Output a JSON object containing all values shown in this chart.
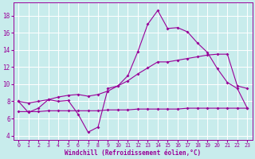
{
  "xlabel": "Windchill (Refroidissement éolien,°C)",
  "background_color": "#c8ecec",
  "grid_color": "#ffffff",
  "line_color": "#990099",
  "x_ticks": [
    0,
    1,
    2,
    3,
    4,
    5,
    6,
    7,
    8,
    9,
    10,
    11,
    12,
    13,
    14,
    15,
    16,
    17,
    18,
    19,
    20,
    21,
    22,
    23
  ],
  "y_ticks": [
    4,
    6,
    8,
    10,
    12,
    14,
    16,
    18
  ],
  "xlim": [
    -0.5,
    23.5
  ],
  "ylim": [
    3.5,
    19.5
  ],
  "series1_x": [
    0,
    1,
    2,
    3,
    4,
    5,
    6,
    7,
    8,
    9,
    10,
    11,
    12,
    13,
    14,
    15,
    16,
    17,
    18,
    19,
    20,
    21,
    22,
    23
  ],
  "series1_y": [
    8.0,
    6.7,
    7.2,
    8.2,
    8.0,
    8.1,
    6.5,
    4.4,
    5.0,
    9.5,
    9.8,
    11.0,
    13.8,
    17.0,
    18.6,
    16.5,
    16.6,
    16.1,
    14.8,
    13.7,
    11.8,
    10.2,
    9.5,
    7.2
  ],
  "series2_x": [
    0,
    1,
    2,
    3,
    4,
    5,
    6,
    7,
    8,
    9,
    10,
    11,
    12,
    13,
    14,
    15,
    16,
    17,
    18,
    19,
    20,
    21,
    22,
    23
  ],
  "series2_y": [
    6.8,
    6.8,
    6.8,
    6.9,
    6.9,
    6.9,
    6.9,
    6.9,
    6.9,
    7.0,
    7.0,
    7.0,
    7.1,
    7.1,
    7.1,
    7.1,
    7.1,
    7.2,
    7.2,
    7.2,
    7.2,
    7.2,
    7.2,
    7.2
  ],
  "series3_x": [
    0,
    1,
    2,
    3,
    4,
    5,
    6,
    7,
    8,
    9,
    10,
    11,
    12,
    13,
    14,
    15,
    16,
    17,
    18,
    19,
    20,
    21,
    22,
    23
  ],
  "series3_y": [
    8.0,
    7.8,
    8.0,
    8.2,
    8.5,
    8.7,
    8.8,
    8.6,
    8.8,
    9.2,
    9.8,
    10.4,
    11.2,
    11.9,
    12.6,
    12.6,
    12.8,
    13.0,
    13.2,
    13.4,
    13.5,
    13.5,
    9.8,
    9.5
  ]
}
